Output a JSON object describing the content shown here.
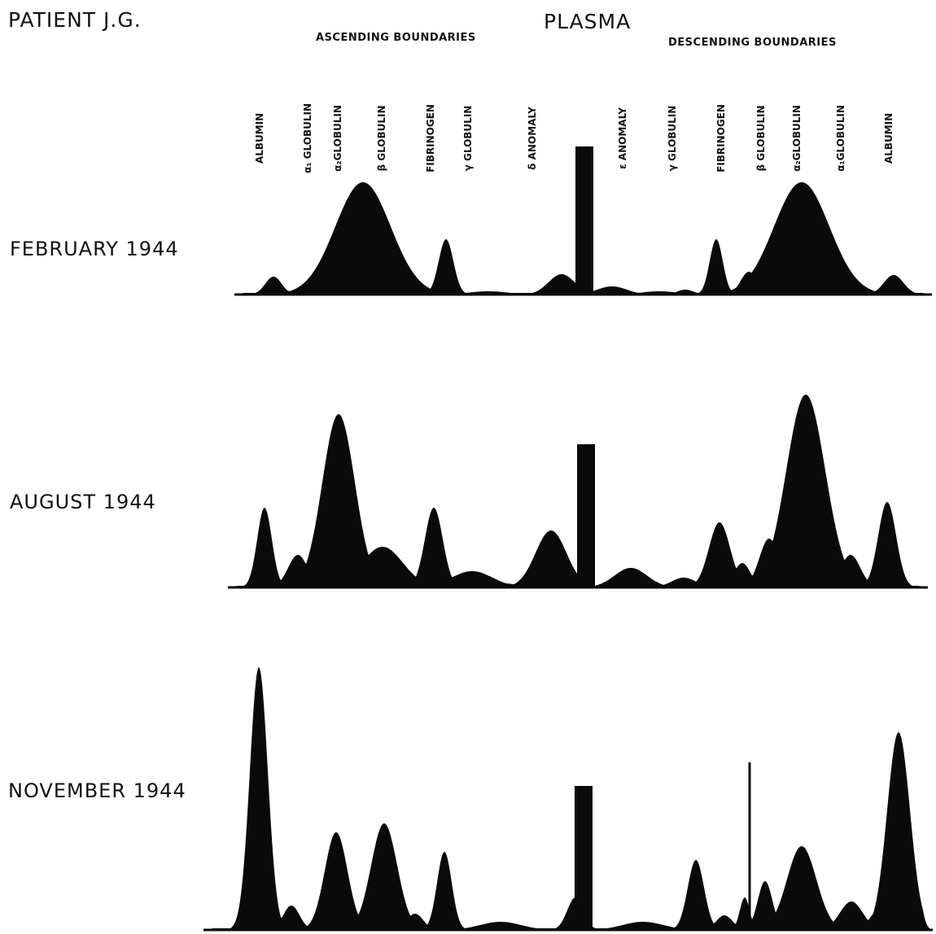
{
  "header": {
    "patient": "PATIENT J.G.",
    "title": "PLASMA",
    "ascending_group": "ASCENDING BOUNDARIES",
    "descending_group": "DESCENDING BOUNDARIES"
  },
  "components": [
    {
      "label": "ALBUMIN"
    },
    {
      "label": "α₁ GLOBULIN"
    },
    {
      "label": "α₂GLOBULIN"
    },
    {
      "label": "β GLOBULIN"
    },
    {
      "label": "FIBRINOGEN"
    },
    {
      "label": "γ GLOBULIN"
    },
    {
      "label": "δ ANOMALY"
    },
    {
      "label": "ε ANOMALY"
    },
    {
      "label": "γ GLOBULIN"
    },
    {
      "label": "FIBRINOGEN"
    },
    {
      "label": "β GLOBULIN"
    },
    {
      "label": "α₂GLOBULIN"
    },
    {
      "label": "α₁GLOBULIN"
    },
    {
      "label": "ALBUMIN"
    }
  ],
  "colors": {
    "trace_fill": "#0a0a0a",
    "background": "#ffffff"
  },
  "chart_data": {
    "type": "area",
    "series_labels": [
      "FEBRUARY 1944",
      "AUGUST 1944",
      "NOVEMBER 1944"
    ],
    "note_x_categories": "electrophoretic boundary patterns, ascending (left) and descending (right) limbs with central starting mark",
    "patterns": [
      {
        "name": "FEBRUARY 1944",
        "peaks": [
          {
            "component": "ALBUMIN (ascending)",
            "height": 22
          },
          {
            "component": "α₂GLOBULIN (ascending)",
            "height": 138
          },
          {
            "component": "FIBRINOGEN (ascending)",
            "height": 68
          },
          {
            "component": "δ ANOMALY",
            "height": 25
          },
          {
            "component": "starting mark",
            "height": 182
          },
          {
            "component": "ε ANOMALY",
            "height": 10
          },
          {
            "component": "FIBRINOGEN (descending)",
            "height": 68
          },
          {
            "component": "α₂GLOBULIN (descending)",
            "height": 138
          },
          {
            "component": "ALBUMIN (descending)",
            "height": 24
          }
        ]
      },
      {
        "name": "AUGUST 1944",
        "peaks": [
          {
            "component": "ALBUMIN (ascending)",
            "height": 98
          },
          {
            "component": "α₂GLOBULIN (ascending)",
            "height": 213
          },
          {
            "component": "FIBRINOGEN (ascending)",
            "height": 98
          },
          {
            "component": "δ ANOMALY",
            "height": 70
          },
          {
            "component": "starting mark",
            "height": 176
          },
          {
            "component": "ε ANOMALY",
            "height": 24
          },
          {
            "component": "FIBRINOGEN (descending)",
            "height": 80
          },
          {
            "component": "α₂GLOBULIN (descending)",
            "height": 237
          },
          {
            "component": "ALBUMIN (descending)",
            "height": 105
          }
        ]
      },
      {
        "name": "NOVEMBER 1944",
        "peaks": [
          {
            "component": "ALBUMIN (ascending)",
            "height": 323
          },
          {
            "component": "α₂GLOBULIN (ascending)",
            "height": 120
          },
          {
            "component": "β GLOBULIN (ascending)",
            "height": 131
          },
          {
            "component": "FIBRINOGEN (ascending)",
            "height": 96
          },
          {
            "component": "δ ANOMALY",
            "height": 40
          },
          {
            "component": "starting mark",
            "height": 177
          },
          {
            "component": "FIBRINOGEN (descending)",
            "height": 86
          },
          {
            "component": "β GLOBULIN spike (descending)",
            "height": 206
          },
          {
            "component": "α₂GLOBULIN (descending)",
            "height": 103
          },
          {
            "component": "ALBUMIN (descending)",
            "height": 243
          }
        ]
      }
    ]
  }
}
